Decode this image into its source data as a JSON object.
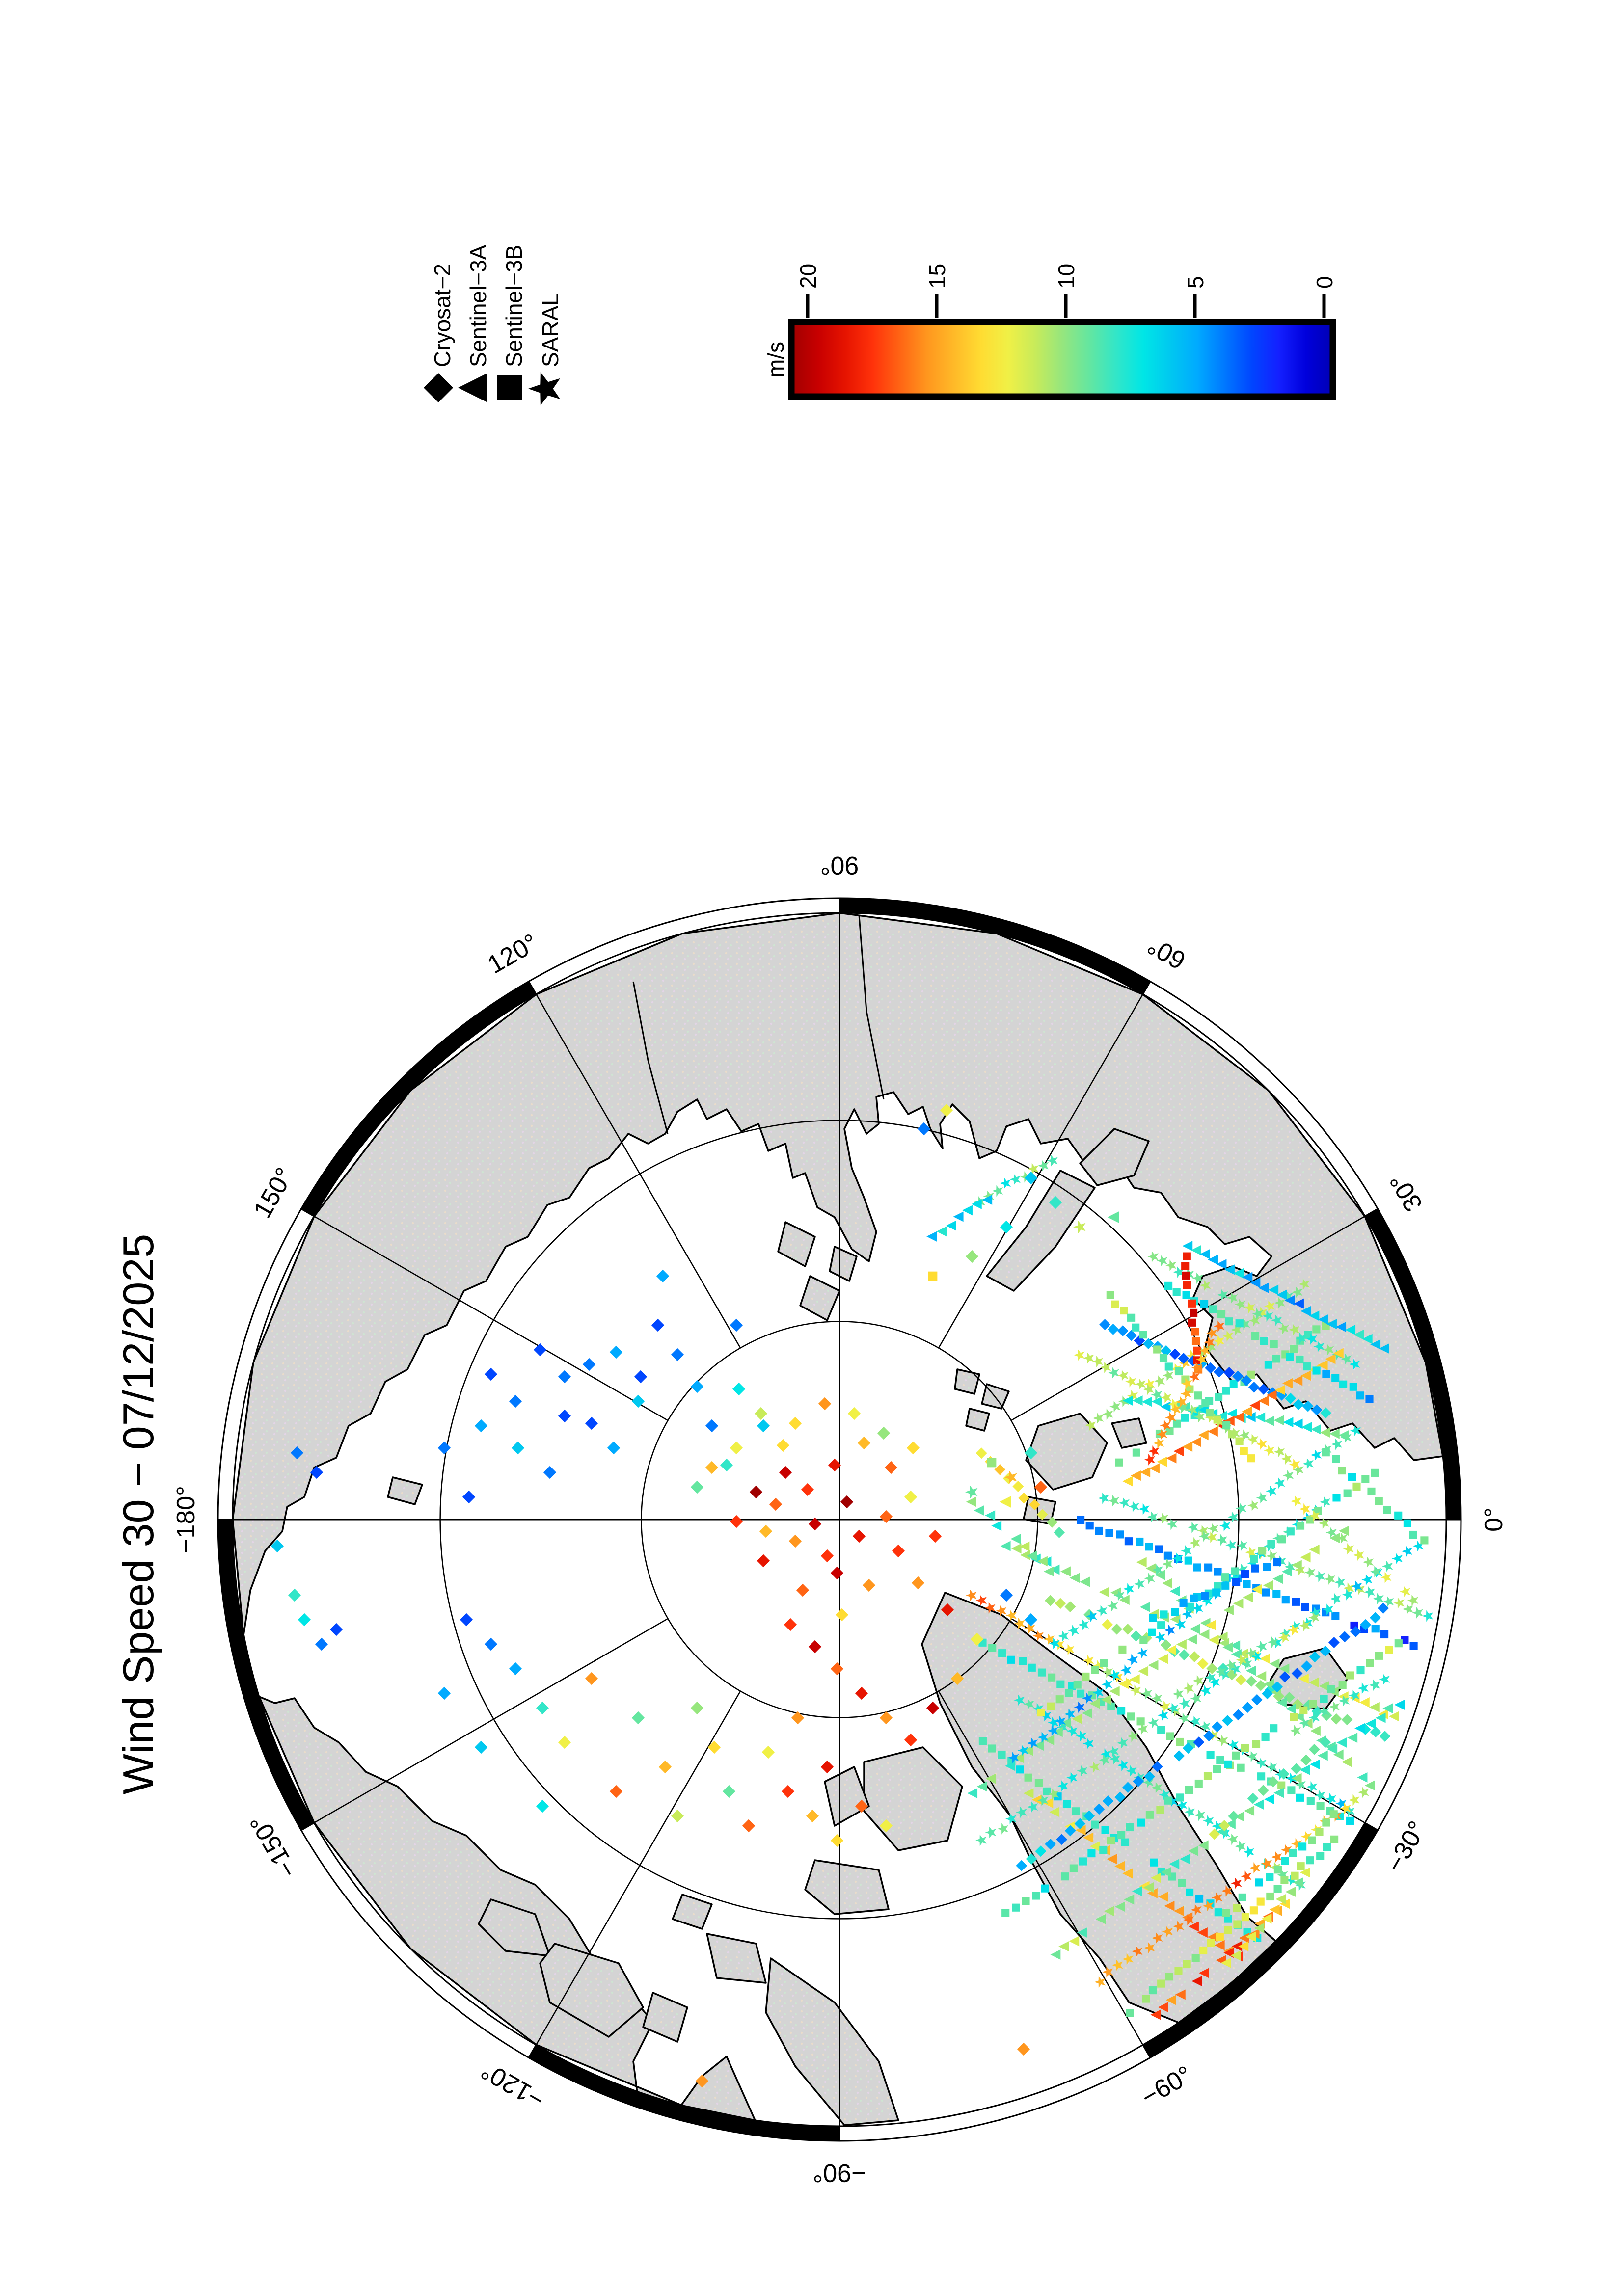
{
  "title": "Wind Speed 30 − 07/12/2025",
  "legend": {
    "entries": [
      {
        "label": "Cryosat−2",
        "symbol": "diamond"
      },
      {
        "label": "Sentinel−3A",
        "symbol": "triangle"
      },
      {
        "label": "Sentinel−3B",
        "symbol": "square"
      },
      {
        "label": "SARAL",
        "symbol": "star"
      }
    ]
  },
  "colorbar": {
    "label": "m/s",
    "ticks": [
      "20",
      "15",
      "10",
      "5",
      "0"
    ],
    "min": 0,
    "max": 20,
    "stops": [
      [
        0,
        "#0000b4"
      ],
      [
        1,
        "#0000dc"
      ],
      [
        2,
        "#1420ff"
      ],
      [
        3,
        "#0046ff"
      ],
      [
        4,
        "#0078ff"
      ],
      [
        5,
        "#00aaff"
      ],
      [
        6,
        "#00c8f0"
      ],
      [
        7,
        "#00e6e6"
      ],
      [
        8,
        "#32e6c8"
      ],
      [
        9,
        "#64e6a0"
      ],
      [
        10,
        "#96e67d"
      ],
      [
        11,
        "#c8eb5a"
      ],
      [
        12,
        "#f0f046"
      ],
      [
        13,
        "#ffdc32"
      ],
      [
        14,
        "#ffb928"
      ],
      [
        15,
        "#ff961e"
      ],
      [
        16,
        "#ff6414"
      ],
      [
        17,
        "#ff320a"
      ],
      [
        18,
        "#e61400"
      ],
      [
        19,
        "#c80000"
      ],
      [
        20,
        "#a00000"
      ]
    ]
  },
  "map": {
    "border_latitude": 60,
    "latitude_circles": [
      80,
      70
    ],
    "meridian_step_deg": 30,
    "meridian_labels": [
      {
        "lon": 90,
        "text": "90°"
      },
      {
        "lon": 60,
        "text": "60°"
      },
      {
        "lon": 30,
        "text": "30°"
      },
      {
        "lon": 0,
        "text": "0°"
      },
      {
        "lon": -30,
        "text": "−30°"
      },
      {
        "lon": -60,
        "text": "−60°"
      },
      {
        "lon": -90,
        "text": "−90°"
      },
      {
        "lon": -120,
        "text": "−120°"
      },
      {
        "lon": -150,
        "text": "−150°"
      },
      {
        "lon": -180,
        "text": "−180°"
      },
      {
        "lon": 150,
        "text": "150°"
      },
      {
        "lon": 120,
        "text": "120°"
      }
    ],
    "land_color": "#d4d4d4",
    "ocean_color": "#ffffff"
  },
  "chart_data": {
    "type": "scatter",
    "title": "Wind Speed 30 − 07/12/2025",
    "units": "m/s",
    "value_range": [
      0,
      20
    ],
    "satellites": [
      {
        "name": "Cryosat−2",
        "symbol": "diamond"
      },
      {
        "name": "Sentinel−3A",
        "symbol": "triangle"
      },
      {
        "name": "Sentinel−3B",
        "symbol": "square"
      },
      {
        "name": "SARAL",
        "symbol": "star"
      }
    ],
    "tracks": [
      [
        "*",
        1980,
        3250,
        2750,
        3690,
        40,
        16,
        10,
        7
      ],
      [
        "s",
        2000,
        3350,
        2750,
        3710,
        38,
        8,
        9,
        8
      ],
      [
        "t",
        2050,
        3150,
        2840,
        3500,
        40,
        9,
        10,
        12
      ],
      [
        "*",
        2080,
        3460,
        2650,
        3840,
        34,
        7,
        8,
        9
      ],
      [
        "d",
        2140,
        3260,
        2820,
        3540,
        36,
        11,
        10,
        8
      ],
      [
        "s",
        2000,
        3550,
        2560,
        3950,
        30,
        9,
        7,
        8
      ],
      [
        "s",
        2200,
        3100,
        2900,
        3360,
        36,
        4,
        5,
        3
      ],
      [
        "*",
        2250,
        3050,
        2910,
        3290,
        34,
        8,
        10,
        9
      ],
      [
        "t",
        2100,
        3650,
        2520,
        3990,
        26,
        12,
        14,
        16
      ],
      [
        "t",
        2330,
        3180,
        2790,
        3640,
        30,
        10,
        9,
        10
      ],
      [
        "s",
        2050,
        3900,
        2850,
        3350,
        42,
        8,
        9,
        10
      ],
      [
        "*",
        2000,
        3750,
        2890,
        3150,
        44,
        9,
        8,
        7
      ],
      [
        "t",
        2150,
        3980,
        2850,
        3470,
        38,
        10,
        9,
        8
      ],
      [
        "d",
        2080,
        3800,
        2820,
        3280,
        38,
        6,
        5,
        4
      ],
      [
        "*",
        2220,
        4050,
        2800,
        3640,
        30,
        14,
        16,
        12
      ],
      [
        "t",
        1980,
        3650,
        2740,
        3120,
        40,
        9,
        11,
        10
      ],
      [
        "s",
        2300,
        4100,
        2720,
        3750,
        26,
        10,
        12,
        9
      ],
      [
        "*",
        2050,
        3600,
        2700,
        3060,
        36,
        5,
        6,
        8
      ],
      [
        "t",
        2340,
        4120,
        2620,
        3880,
        18,
        15,
        17,
        14
      ],
      [
        "s",
        2100,
        3500,
        2800,
        3000,
        38,
        10,
        8,
        9
      ],
      [
        "*",
        2150,
        3350,
        2780,
        2900,
        34,
        7,
        9,
        8
      ],
      [
        "*",
        2640,
        3060,
        2880,
        3260,
        14,
        12,
        10,
        11
      ],
      [
        "s",
        2700,
        2960,
        2900,
        3140,
        12,
        9,
        8,
        9
      ],
      [
        "s",
        2280,
        2980,
        2700,
        2700,
        26,
        9,
        8,
        10
      ],
      [
        "*",
        2220,
        2900,
        2660,
        2620,
        26,
        10,
        12,
        9
      ],
      [
        "t",
        2300,
        2850,
        2740,
        2920,
        24,
        8,
        7,
        9
      ],
      [
        "d",
        2250,
        2700,
        2700,
        2880,
        26,
        5,
        4,
        6
      ],
      [
        "*",
        2350,
        2560,
        2760,
        2780,
        24,
        9,
        10,
        8
      ],
      [
        "t",
        2300,
        3020,
        2730,
        2760,
        26,
        14,
        16,
        13
      ],
      [
        "s",
        2380,
        2620,
        2790,
        2850,
        24,
        7,
        8,
        6
      ],
      [
        "*",
        2200,
        2760,
        2640,
        2980,
        26,
        11,
        10,
        12
      ],
      [
        "t",
        2420,
        2540,
        2820,
        2750,
        24,
        6,
        5,
        7
      ],
      [
        "s",
        2260,
        2640,
        2550,
        2970,
        22,
        10,
        9,
        11
      ],
      [
        "s",
        2415,
        2560,
        2445,
        2790,
        13,
        17,
        18,
        16
      ],
      [
        "*",
        2480,
        2700,
        2345,
        2975,
        17,
        15,
        14,
        16
      ],
      [
        "*",
        1995,
        2445,
        2145,
        2365,
        9,
        9,
        8,
        10
      ],
      [
        "t",
        1900,
        2520,
        2030,
        2430,
        8,
        6,
        7,
        5
      ],
      [
        "d",
        2000,
        2960,
        2160,
        3120,
        10,
        12,
        14,
        10
      ],
      [
        "t",
        1980,
        3060,
        2140,
        3200,
        10,
        9,
        8,
        11
      ],
      [
        "s",
        2500,
        3900,
        2720,
        3700,
        14,
        9,
        8,
        10
      ],
      [
        "t",
        2500,
        4000,
        2680,
        3800,
        12,
        11,
        12,
        10
      ],
      [
        "*",
        2600,
        3550,
        2820,
        3420,
        12,
        8,
        9,
        7
      ],
      [
        "d",
        2450,
        3750,
        2700,
        3550,
        13,
        10,
        9,
        8
      ],
      [
        "s",
        2350,
        3300,
        2600,
        3180,
        13,
        6,
        5,
        4
      ],
      [
        "*",
        2400,
        3450,
        2680,
        3300,
        14,
        9,
        10,
        11
      ]
    ],
    "points": [
      [
        "d",
        1600,
        3000,
        19
      ],
      [
        "d",
        1645,
        3035,
        17
      ],
      [
        "d",
        1700,
        2985,
        18
      ],
      [
        "d",
        1580,
        3065,
        16
      ],
      [
        "d",
        1660,
        3105,
        19
      ],
      [
        "d",
        1725,
        3060,
        20
      ],
      [
        "d",
        1620,
        3140,
        15
      ],
      [
        "d",
        1685,
        3170,
        17
      ],
      [
        "d",
        1750,
        3130,
        18
      ],
      [
        "d",
        1805,
        3090,
        16
      ],
      [
        "d",
        1560,
        3120,
        14
      ],
      [
        "d",
        1595,
        2945,
        13
      ],
      [
        "d",
        1705,
        3205,
        19
      ],
      [
        "d",
        1770,
        3230,
        15
      ],
      [
        "d",
        1830,
        3160,
        17
      ],
      [
        "d",
        1855,
        3050,
        12
      ],
      [
        "d",
        1760,
        2940,
        14
      ],
      [
        "d",
        1815,
        2990,
        16
      ],
      [
        "d",
        1555,
        3180,
        18
      ],
      [
        "d",
        1635,
        3240,
        16
      ],
      [
        "d",
        1715,
        3290,
        13
      ],
      [
        "d",
        1870,
        3225,
        15
      ],
      [
        "d",
        1905,
        3130,
        17
      ],
      [
        "d",
        1540,
        3040,
        20
      ],
      [
        "d",
        1500,
        3100,
        17
      ],
      [
        "d",
        1610,
        3310,
        17
      ],
      [
        "d",
        1660,
        3355,
        19
      ],
      [
        "d",
        1705,
        3400,
        16
      ],
      [
        "d",
        1755,
        3450,
        18
      ],
      [
        "d",
        1805,
        3500,
        15
      ],
      [
        "d",
        1855,
        3545,
        17
      ],
      [
        "d",
        1900,
        3480,
        19
      ],
      [
        "d",
        1950,
        3420,
        14
      ],
      [
        "d",
        1990,
        3340,
        12
      ],
      [
        "d",
        1930,
        3280,
        18
      ],
      [
        "d",
        1500,
        2950,
        12
      ],
      [
        "d",
        1450,
        2990,
        14
      ],
      [
        "d",
        1550,
        2880,
        11
      ],
      [
        "d",
        1620,
        2900,
        13
      ],
      [
        "d",
        1680,
        2860,
        15
      ],
      [
        "d",
        1740,
        2880,
        12
      ],
      [
        "d",
        1800,
        2920,
        10
      ],
      [
        "d",
        1860,
        2950,
        13
      ],
      [
        "d",
        1380,
        2760,
        4
      ],
      [
        "d",
        1420,
        2825,
        5
      ],
      [
        "d",
        1340,
        2700,
        3
      ],
      [
        "d",
        1300,
        2855,
        6
      ],
      [
        "d",
        1450,
        2905,
        4
      ],
      [
        "d",
        1505,
        2830,
        7
      ],
      [
        "d",
        1250,
        2950,
        5
      ],
      [
        "d",
        1200,
        2780,
        4
      ],
      [
        "d",
        1480,
        2985,
        8
      ],
      [
        "d",
        1555,
        2905,
        6
      ],
      [
        "d",
        1150,
        2885,
        3
      ],
      [
        "d",
        1420,
        3030,
        9
      ],
      [
        "d",
        1350,
        2600,
        5
      ],
      [
        "d",
        1500,
        2700,
        4
      ],
      [
        "d",
        1000,
        2800,
        3
      ],
      [
        "d",
        1050,
        2855,
        4
      ],
      [
        "d",
        980,
        2905,
        5
      ],
      [
        "d",
        1100,
        2750,
        3
      ],
      [
        "d",
        1150,
        2805,
        4
      ],
      [
        "d",
        1205,
        2900,
        3
      ],
      [
        "d",
        1055,
        2950,
        6
      ],
      [
        "d",
        1120,
        3000,
        4
      ],
      [
        "d",
        955,
        3050,
        3
      ],
      [
        "d",
        905,
        2950,
        4
      ],
      [
        "d",
        1255,
        2755,
        5
      ],
      [
        "d",
        1305,
        2805,
        3
      ],
      [
        "d",
        620,
        3300,
        7
      ],
      [
        "d",
        655,
        3350,
        4
      ],
      [
        "d",
        600,
        3250,
        8
      ],
      [
        "d",
        685,
        3320,
        3
      ],
      [
        "d",
        565,
        3150,
        6
      ],
      [
        "d",
        605,
        2960,
        4
      ],
      [
        "d",
        645,
        3000,
        3
      ],
      [
        "d",
        1050,
        3400,
        5
      ],
      [
        "d",
        1105,
        3480,
        8
      ],
      [
        "d",
        1000,
        3350,
        4
      ],
      [
        "d",
        1150,
        3550,
        12
      ],
      [
        "d",
        1205,
        3420,
        15
      ],
      [
        "d",
        980,
        3560,
        6
      ],
      [
        "d",
        1300,
        3500,
        9
      ],
      [
        "d",
        1355,
        3600,
        14
      ],
      [
        "d",
        1255,
        3650,
        16
      ],
      [
        "d",
        1105,
        3680,
        7
      ],
      [
        "d",
        1420,
        3480,
        10
      ],
      [
        "d",
        1455,
        3560,
        13
      ],
      [
        "d",
        905,
        3450,
        5
      ],
      [
        "d",
        950,
        3300,
        3
      ],
      [
        "d",
        1380,
        3700,
        11
      ],
      [
        "d",
        1485,
        3650,
        9
      ],
      [
        "d",
        1525,
        3720,
        16
      ],
      [
        "d",
        1565,
        3570,
        12
      ],
      [
        "d",
        1605,
        3650,
        17
      ],
      [
        "d",
        1655,
        3700,
        14
      ],
      [
        "d",
        1685,
        3600,
        18
      ],
      [
        "d",
        1625,
        3500,
        15
      ],
      [
        "d",
        1705,
        3750,
        13
      ],
      [
        "d",
        1755,
        3680,
        16
      ],
      [
        "d",
        1805,
        3720,
        12
      ],
      [
        "s",
        2020,
        2980,
        10
      ],
      [
        "*",
        2060,
        3010,
        14
      ],
      [
        "d",
        2100,
        2960,
        8
      ],
      [
        "t",
        2050,
        3060,
        12
      ],
      [
        "d",
        2120,
        3030,
        16
      ],
      [
        "*",
        1980,
        3040,
        9
      ],
      [
        "d",
        2150,
        2450,
        8
      ],
      [
        "*",
        2200,
        2500,
        11
      ],
      [
        "d",
        2100,
        2400,
        6
      ],
      [
        "t",
        2270,
        2480,
        9
      ],
      [
        "d",
        2050,
        2500,
        7
      ],
      [
        "d",
        1980,
        2560,
        10
      ],
      [
        "s",
        1900,
        2600,
        13
      ],
      [
        "d",
        1928,
        2262,
        12
      ],
      [
        "d",
        1882,
        2300,
        4
      ],
      [
        "d",
        2085,
        4175,
        15
      ],
      [
        "d",
        1430,
        4240,
        15
      ],
      [
        "d",
        2050,
        3250,
        4
      ],
      [
        "d",
        2100,
        3300,
        5
      ]
    ]
  }
}
